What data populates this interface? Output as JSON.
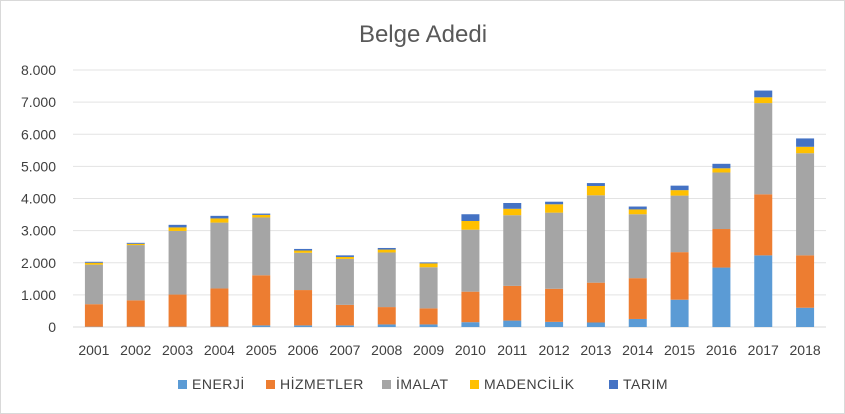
{
  "chart_data": {
    "type": "bar",
    "stacked": true,
    "title": "Belge Adedi",
    "xlabel": "",
    "ylabel": "",
    "ylim": [
      0,
      8000
    ],
    "y_ticks": [
      "0",
      "1.000",
      "2.000",
      "3.000",
      "4.000",
      "5.000",
      "6.000",
      "7.000",
      "8.000"
    ],
    "y_tick_values": [
      0,
      1000,
      2000,
      3000,
      4000,
      5000,
      6000,
      7000,
      8000
    ],
    "grid": true,
    "legend_position": "bottom",
    "categories": [
      "2001",
      "2002",
      "2003",
      "2004",
      "2005",
      "2006",
      "2007",
      "2008",
      "2009",
      "2010",
      "2011",
      "2012",
      "2013",
      "2014",
      "2015",
      "2016",
      "2017",
      "2018"
    ],
    "series": [
      {
        "name": "ENERJİ",
        "color": "#5b9bd5",
        "values": [
          10,
          10,
          10,
          10,
          50,
          50,
          50,
          80,
          80,
          150,
          200,
          160,
          140,
          250,
          850,
          1850,
          2230,
          600
        ]
      },
      {
        "name": "HİZMETLER",
        "color": "#ed7d31",
        "values": [
          700,
          820,
          1000,
          1190,
          1560,
          1100,
          640,
          540,
          500,
          950,
          1080,
          1030,
          1240,
          1270,
          1480,
          1200,
          1900,
          1630
        ]
      },
      {
        "name": "İMALAT",
        "color": "#a5a5a5",
        "values": [
          1230,
          1720,
          1980,
          2050,
          1800,
          1160,
          1430,
          1700,
          1280,
          1930,
          2200,
          2370,
          2720,
          1990,
          1760,
          1760,
          2840,
          3180
        ]
      },
      {
        "name": "MADENCİLİK",
        "color": "#ffc000",
        "values": [
          60,
          40,
          110,
          130,
          80,
          70,
          60,
          90,
          120,
          270,
          200,
          260,
          290,
          150,
          170,
          130,
          180,
          200
        ]
      },
      {
        "name": "TARIM",
        "color": "#4472c4",
        "values": [
          30,
          30,
          80,
          80,
          40,
          50,
          50,
          50,
          30,
          210,
          180,
          80,
          90,
          90,
          140,
          140,
          210,
          260
        ]
      }
    ]
  }
}
